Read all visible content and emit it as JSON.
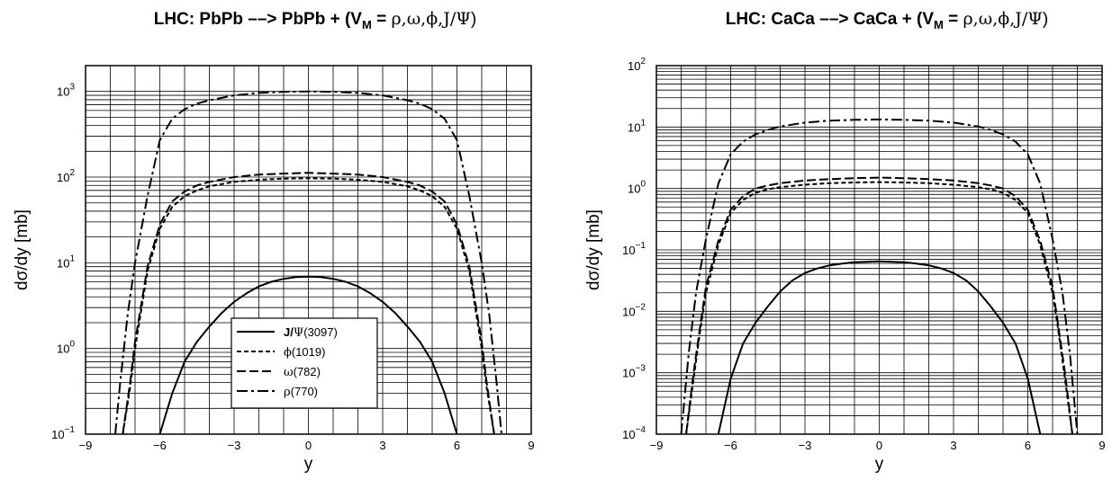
{
  "chart_data": [
    {
      "type": "line",
      "title_parts": {
        "prefix": "LHC: PbPb ––> PbPb + (V",
        "sub": "M",
        "mid": " = ",
        "greek": "ρ,ω,ϕ,J/Ψ",
        "suffix": ")"
      },
      "xlabel": "y",
      "ylabel": "dσ/dy [mb]",
      "xlim": [
        -9,
        9
      ],
      "ylim": [
        0.1,
        2000
      ],
      "yscale": "log",
      "x_ticks": [
        "−9",
        "−6",
        "−3",
        "0",
        "3",
        "6",
        "9"
      ],
      "y_ticks": [
        {
          "base": "10",
          "exp": "−1",
          "value": 0.1
        },
        {
          "base": "10",
          "exp": "0",
          "value": 1
        },
        {
          "base": "10",
          "exp": "1",
          "value": 10
        },
        {
          "base": "10",
          "exp": "2",
          "value": 100
        },
        {
          "base": "10",
          "exp": "3",
          "value": 1000
        }
      ],
      "grid": true,
      "legend_position": "bottom-center",
      "legend": [
        {
          "bold": "J/",
          "greek": "Ψ",
          "rest": "(3097)",
          "style": "solid"
        },
        {
          "bold": "",
          "greek": "ϕ",
          "rest": "(1019)",
          "style": "dot"
        },
        {
          "bold": "",
          "greek": "ω",
          "rest": "(782)",
          "style": "dash"
        },
        {
          "bold": "",
          "greek": "ρ",
          "rest": "(770)",
          "style": "dashdot"
        }
      ],
      "series": [
        {
          "style": "solid",
          "x": [
            -6.0,
            -5.5,
            -5.0,
            -4.5,
            -4.0,
            -3.5,
            -3.0,
            -2.5,
            -2.0,
            -1.5,
            -1.0,
            -0.5,
            0.0,
            0.5,
            1.0,
            1.5,
            2.0,
            2.5,
            3.0,
            3.5,
            4.0,
            4.5,
            5.0,
            5.5,
            6.0
          ],
          "y": [
            0.1,
            0.3,
            0.7,
            1.2,
            1.8,
            2.6,
            3.5,
            4.4,
            5.3,
            6.0,
            6.5,
            6.8,
            6.9,
            6.8,
            6.5,
            6.0,
            5.3,
            4.4,
            3.5,
            2.6,
            1.8,
            1.2,
            0.7,
            0.3,
            0.1
          ]
        },
        {
          "style": "dot",
          "x": [
            -7.5,
            -7.2,
            -7.0,
            -6.7,
            -6.5,
            -6.0,
            -5.5,
            -5.0,
            -4.5,
            -4.0,
            -3.0,
            -2.0,
            -1.0,
            0.0,
            1.0,
            2.0,
            3.0,
            4.0,
            4.5,
            5.0,
            5.5,
            6.0,
            6.5,
            6.7,
            7.0,
            7.2,
            7.5
          ],
          "y": [
            0.1,
            0.35,
            1.0,
            3.5,
            8.0,
            25,
            45,
            60,
            70,
            78,
            88,
            93,
            96,
            97,
            96,
            93,
            88,
            78,
            70,
            60,
            45,
            25,
            8.0,
            3.5,
            1.0,
            0.35,
            0.1
          ]
        },
        {
          "style": "dash",
          "x": [
            -7.5,
            -7.2,
            -7.0,
            -6.7,
            -6.5,
            -6.0,
            -5.5,
            -5.0,
            -4.5,
            -4.0,
            -3.0,
            -2.0,
            -1.0,
            0.0,
            1.0,
            2.0,
            3.0,
            4.0,
            4.5,
            5.0,
            5.5,
            6.0,
            6.5,
            6.7,
            7.0,
            7.2,
            7.5
          ],
          "y": [
            0.1,
            0.4,
            1.2,
            4.0,
            9.0,
            28,
            52,
            68,
            80,
            88,
            100,
            107,
            110,
            112,
            110,
            107,
            100,
            88,
            80,
            68,
            52,
            28,
            9.0,
            4.0,
            1.2,
            0.4,
            0.1
          ]
        },
        {
          "style": "dashdot",
          "x": [
            -7.8,
            -7.6,
            -7.3,
            -7.0,
            -6.5,
            -6.0,
            -5.5,
            -5.0,
            -4.5,
            -4.0,
            -3.0,
            -2.0,
            -1.0,
            0.0,
            1.0,
            2.0,
            3.0,
            4.0,
            4.5,
            5.0,
            5.5,
            6.0,
            6.5,
            7.0,
            7.3,
            7.6,
            7.8
          ],
          "y": [
            0.1,
            0.4,
            2.5,
            10,
            60,
            270,
            480,
            620,
            720,
            790,
            900,
            960,
            990,
            1000,
            990,
            960,
            900,
            790,
            720,
            620,
            480,
            270,
            60,
            10,
            2.5,
            0.4,
            0.1
          ]
        }
      ]
    },
    {
      "type": "line",
      "title_parts": {
        "prefix": "LHC: CaCa ––> CaCa + (V",
        "sub": "M",
        "mid": " = ",
        "greek": "ρ,ω,ϕ,J/Ψ",
        "suffix": ")"
      },
      "xlabel": "y",
      "ylabel": "dσ/dy [mb]",
      "xlim": [
        -9,
        9
      ],
      "ylim": [
        0.0001,
        100
      ],
      "yscale": "log",
      "x_ticks": [
        "−9",
        "−6",
        "−3",
        "0",
        "3",
        "6",
        "9"
      ],
      "y_ticks": [
        {
          "base": "10",
          "exp": "−4",
          "value": 0.0001
        },
        {
          "base": "10",
          "exp": "−3",
          "value": 0.001
        },
        {
          "base": "10",
          "exp": "−2",
          "value": 0.01
        },
        {
          "base": "10",
          "exp": "−1",
          "value": 0.1
        },
        {
          "base": "10",
          "exp": "0",
          "value": 1
        },
        {
          "base": "10",
          "exp": "1",
          "value": 10
        },
        {
          "base": "10",
          "exp": "2",
          "value": 100
        }
      ],
      "grid": true,
      "series": [
        {
          "style": "solid",
          "x": [
            -6.5,
            -6.0,
            -5.5,
            -5.0,
            -4.5,
            -4.0,
            -3.5,
            -3.0,
            -2.5,
            -2.0,
            -1.5,
            -1.0,
            -0.5,
            0.0,
            0.5,
            1.0,
            1.5,
            2.0,
            2.5,
            3.0,
            3.5,
            4.0,
            4.5,
            5.0,
            5.5,
            6.0,
            6.5
          ],
          "y": [
            0.0001,
            0.0008,
            0.003,
            0.0065,
            0.012,
            0.021,
            0.032,
            0.042,
            0.05,
            0.056,
            0.06,
            0.063,
            0.064,
            0.065,
            0.064,
            0.063,
            0.06,
            0.056,
            0.05,
            0.042,
            0.032,
            0.021,
            0.012,
            0.0065,
            0.003,
            0.0008,
            0.0001
          ]
        },
        {
          "style": "dot",
          "x": [
            -7.8,
            -7.5,
            -7.2,
            -7.0,
            -6.5,
            -6.0,
            -5.5,
            -5.0,
            -4.5,
            -4.0,
            -3.0,
            -2.0,
            -1.0,
            0.0,
            1.0,
            2.0,
            3.0,
            4.0,
            4.5,
            5.0,
            5.5,
            6.0,
            6.5,
            7.0,
            7.2,
            7.5,
            7.8
          ],
          "y": [
            0.0001,
            0.0008,
            0.006,
            0.02,
            0.12,
            0.4,
            0.65,
            0.85,
            0.97,
            1.05,
            1.15,
            1.22,
            1.25,
            1.27,
            1.25,
            1.22,
            1.15,
            1.05,
            0.97,
            0.85,
            0.65,
            0.4,
            0.12,
            0.02,
            0.006,
            0.0008,
            0.0001
          ]
        },
        {
          "style": "dash",
          "x": [
            -7.8,
            -7.5,
            -7.2,
            -7.0,
            -6.5,
            -6.0,
            -5.5,
            -5.0,
            -4.5,
            -4.0,
            -3.0,
            -2.0,
            -1.0,
            0.0,
            1.0,
            2.0,
            3.0,
            4.0,
            4.5,
            5.0,
            5.5,
            6.0,
            6.5,
            7.0,
            7.2,
            7.5,
            7.8
          ],
          "y": [
            0.0001,
            0.001,
            0.007,
            0.025,
            0.14,
            0.45,
            0.75,
            1.0,
            1.12,
            1.22,
            1.35,
            1.42,
            1.47,
            1.5,
            1.47,
            1.42,
            1.35,
            1.22,
            1.12,
            1.0,
            0.75,
            0.45,
            0.14,
            0.025,
            0.007,
            0.001,
            0.0001
          ]
        },
        {
          "style": "dashdot",
          "x": [
            -8.0,
            -7.7,
            -7.4,
            -7.0,
            -6.5,
            -6.0,
            -5.5,
            -5.0,
            -4.5,
            -4.0,
            -3.0,
            -2.0,
            -1.0,
            0.0,
            1.0,
            2.0,
            3.0,
            4.0,
            4.5,
            5.0,
            5.5,
            6.0,
            6.5,
            7.0,
            7.4,
            7.7,
            8.0
          ],
          "y": [
            0.0001,
            0.002,
            0.02,
            0.15,
            1.2,
            3.6,
            5.8,
            7.6,
            9.0,
            10.2,
            11.8,
            12.7,
            13.1,
            13.3,
            13.1,
            12.7,
            11.8,
            10.2,
            9.0,
            7.6,
            5.8,
            3.6,
            1.2,
            0.15,
            0.02,
            0.002,
            0.0001
          ]
        }
      ]
    }
  ]
}
